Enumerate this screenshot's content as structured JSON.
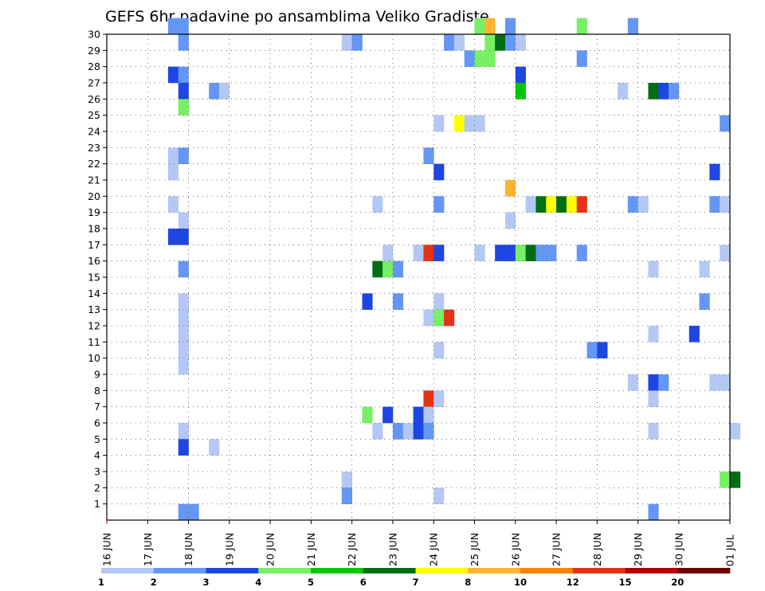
{
  "chart_data": {
    "type": "heatmap",
    "title": "GEFS 6hr padavine po ansamblima Veliko Gradiste",
    "xlabel": "",
    "ylabel": "",
    "x_tick_labels": [
      "16 JUN",
      "17 JUN",
      "18 JUN",
      "19 JUN",
      "20 JUN",
      "21 JUN",
      "22 JUN",
      "23 JUN",
      "24 JUN",
      "25 JUN",
      "26 JUN",
      "27 JUN",
      "28 JUN",
      "29 JUN",
      "30 JUN",
      "01 JUL"
    ],
    "y_tick_labels": [
      "1",
      "2",
      "3",
      "4",
      "5",
      "6",
      "7",
      "8",
      "9",
      "10",
      "11",
      "12",
      "13",
      "14",
      "15",
      "16",
      "17",
      "18",
      "19",
      "20",
      "21",
      "22",
      "23",
      "24",
      "25",
      "26",
      "27",
      "28",
      "29",
      "30"
    ],
    "x_range_steps": [
      0,
      61
    ],
    "y_range_members": [
      0,
      30
    ],
    "steps_per_day": 4,
    "grid": true,
    "legend": {
      "placement": "bottom",
      "labels": [
        "1",
        "2",
        "3",
        "4",
        "5",
        "6",
        "7",
        "8",
        "10",
        "12",
        "15",
        "20"
      ],
      "colors": [
        "#b4c8f5",
        "#6496f5",
        "#1e46e1",
        "#78f064",
        "#00c800",
        "#006e14",
        "#ffff00",
        "#ffb432",
        "#ff8200",
        "#e63214",
        "#b40000",
        "#6e0000"
      ]
    },
    "palette": [
      "#b4c8f5",
      "#6496f5",
      "#1e46e1",
      "#78f064",
      "#00c800",
      "#006e14",
      "#ffff00",
      "#ffb432",
      "#ff8200",
      "#e63214",
      "#b40000",
      "#6e0000"
    ],
    "cells_format": "[time_step, member_row, color_class]",
    "cells": [
      [
        6,
        30,
        1
      ],
      [
        7,
        30,
        1
      ],
      [
        36,
        30,
        3
      ],
      [
        37,
        30,
        7
      ],
      [
        39,
        30,
        1
      ],
      [
        46,
        30,
        3
      ],
      [
        51,
        30,
        1
      ],
      [
        7,
        29,
        1
      ],
      [
        23,
        29,
        0
      ],
      [
        24,
        29,
        1
      ],
      [
        33,
        29,
        1
      ],
      [
        34,
        29,
        0
      ],
      [
        37,
        29,
        3
      ],
      [
        38,
        29,
        5
      ],
      [
        39,
        29,
        1
      ],
      [
        40,
        29,
        0
      ],
      [
        35,
        28,
        1
      ],
      [
        36,
        28,
        3
      ],
      [
        37,
        28,
        3
      ],
      [
        46,
        28,
        1
      ],
      [
        6,
        27,
        2
      ],
      [
        7,
        27,
        1
      ],
      [
        40,
        27,
        2
      ],
      [
        7,
        26,
        2
      ],
      [
        10,
        26,
        1
      ],
      [
        11,
        26,
        0
      ],
      [
        40,
        26,
        4
      ],
      [
        50,
        26,
        0
      ],
      [
        53,
        26,
        5
      ],
      [
        54,
        26,
        2
      ],
      [
        55,
        26,
        1
      ],
      [
        7,
        25,
        3
      ],
      [
        32,
        24,
        0
      ],
      [
        34,
        24,
        6
      ],
      [
        35,
        24,
        0
      ],
      [
        36,
        24,
        0
      ],
      [
        60,
        24,
        1
      ],
      [
        6,
        22,
        0
      ],
      [
        7,
        22,
        1
      ],
      [
        31,
        22,
        1
      ],
      [
        6,
        21,
        0
      ],
      [
        32,
        21,
        2
      ],
      [
        59,
        21,
        2
      ],
      [
        39,
        20,
        7
      ],
      [
        6,
        19,
        0
      ],
      [
        26,
        19,
        0
      ],
      [
        32,
        19,
        1
      ],
      [
        41,
        19,
        0
      ],
      [
        42,
        19,
        5
      ],
      [
        43,
        19,
        6
      ],
      [
        44,
        19,
        5
      ],
      [
        45,
        19,
        6
      ],
      [
        46,
        19,
        9
      ],
      [
        51,
        19,
        1
      ],
      [
        52,
        19,
        0
      ],
      [
        59,
        19,
        1
      ],
      [
        60,
        19,
        0
      ],
      [
        7,
        18,
        0
      ],
      [
        39,
        18,
        0
      ],
      [
        6,
        17,
        2
      ],
      [
        7,
        17,
        2
      ],
      [
        27,
        16,
        0
      ],
      [
        30,
        16,
        0
      ],
      [
        31,
        16,
        9
      ],
      [
        32,
        16,
        2
      ],
      [
        36,
        16,
        0
      ],
      [
        38,
        16,
        2
      ],
      [
        39,
        16,
        2
      ],
      [
        40,
        16,
        3
      ],
      [
        41,
        16,
        5
      ],
      [
        42,
        16,
        1
      ],
      [
        43,
        16,
        1
      ],
      [
        46,
        16,
        1
      ],
      [
        60,
        16,
        0
      ],
      [
        7,
        15,
        1
      ],
      [
        26,
        15,
        5
      ],
      [
        27,
        15,
        3
      ],
      [
        28,
        15,
        1
      ],
      [
        53,
        15,
        0
      ],
      [
        58,
        15,
        0
      ],
      [
        7,
        13,
        0
      ],
      [
        25,
        13,
        2
      ],
      [
        28,
        13,
        1
      ],
      [
        32,
        13,
        0
      ],
      [
        58,
        13,
        1
      ],
      [
        7,
        12,
        0
      ],
      [
        31,
        12,
        0
      ],
      [
        32,
        12,
        3
      ],
      [
        33,
        12,
        9
      ],
      [
        7,
        11,
        0
      ],
      [
        53,
        11,
        0
      ],
      [
        57,
        11,
        2
      ],
      [
        7,
        10,
        0
      ],
      [
        32,
        10,
        0
      ],
      [
        47,
        10,
        1
      ],
      [
        48,
        10,
        2
      ],
      [
        7,
        9,
        0
      ],
      [
        51,
        8,
        0
      ],
      [
        53,
        8,
        2
      ],
      [
        54,
        8,
        1
      ],
      [
        59,
        8,
        0
      ],
      [
        60,
        8,
        0
      ],
      [
        31,
        7,
        9
      ],
      [
        32,
        7,
        0
      ],
      [
        53,
        7,
        0
      ],
      [
        25,
        6,
        3
      ],
      [
        27,
        6,
        2
      ],
      [
        30,
        6,
        2
      ],
      [
        31,
        6,
        0
      ],
      [
        7,
        5,
        0
      ],
      [
        26,
        5,
        0
      ],
      [
        28,
        5,
        1
      ],
      [
        29,
        5,
        0
      ],
      [
        30,
        5,
        2
      ],
      [
        31,
        5,
        1
      ],
      [
        53,
        5,
        0
      ],
      [
        61,
        5,
        0
      ],
      [
        7,
        4,
        2
      ],
      [
        10,
        4,
        0
      ],
      [
        23,
        2,
        0
      ],
      [
        60,
        2,
        3
      ],
      [
        61,
        2,
        5
      ],
      [
        23,
        1,
        1
      ],
      [
        32,
        1,
        0
      ],
      [
        7,
        0,
        1
      ],
      [
        8,
        0,
        1
      ],
      [
        53,
        0,
        1
      ]
    ]
  }
}
